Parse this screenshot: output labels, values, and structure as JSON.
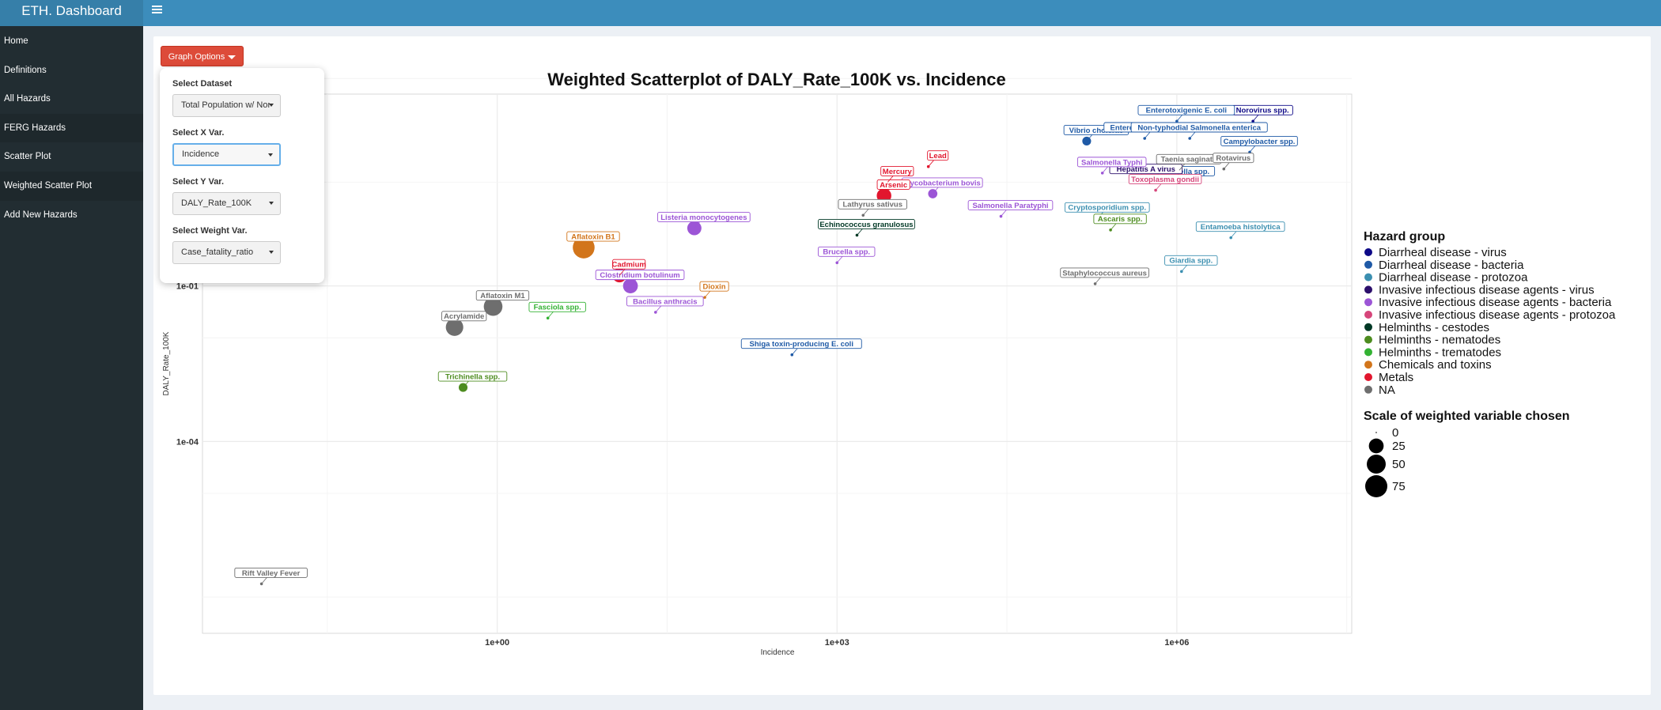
{
  "app": {
    "title": "ETH. Dashboard"
  },
  "header": {
    "toggle_icon": "hamburger-icon"
  },
  "sidebar": {
    "items": [
      {
        "label": "Home",
        "active": false
      },
      {
        "label": "Definitions",
        "active": false
      },
      {
        "label": "All Hazards",
        "active": false
      },
      {
        "label": "FERG Hazards",
        "active": true
      },
      {
        "label": "Scatter Plot",
        "active": false
      },
      {
        "label": "Weighted Scatter Plot",
        "active": true
      },
      {
        "label": "Add New Hazards",
        "active": false
      }
    ]
  },
  "graph_options": {
    "button_label": "Graph Options",
    "dataset": {
      "label": "Select Dataset",
      "value": "Total Population w/ Non-FERG"
    },
    "x_var": {
      "label": "Select X Var.",
      "value": "Incidence"
    },
    "y_var": {
      "label": "Select Y Var.",
      "value": "DALY_Rate_100K"
    },
    "weight_var": {
      "label": "Select Weight Var.",
      "value": "Case_fatality_ratio"
    }
  },
  "chart_data": {
    "type": "scatter",
    "title": "Weighted Scatterplot of  DALY_Rate_100K vs. Incidence",
    "xlabel": "Incidence",
    "ylabel": "DALY_Rate_100K",
    "x_scale": "log10",
    "y_scale": "log10",
    "xlim": [
      0.0025,
      35000000
    ],
    "ylim": [
      2e-08,
      500
    ],
    "x_ticks": [
      {
        "value": 1,
        "label": "1e+00"
      },
      {
        "value": 1000,
        "label": "1e+03"
      },
      {
        "value": 1000000,
        "label": "1e+06"
      }
    ],
    "y_ticks": [
      {
        "value": 0.1,
        "label": "1e-01"
      },
      {
        "value": 0.0001,
        "label": "1e-04"
      }
    ],
    "grid": true,
    "legend_position": "right",
    "groups": [
      {
        "name": "Diarrheal disease - virus",
        "color": "#0d0887"
      },
      {
        "name": "Diarrheal disease - bacteria",
        "color": "#1f5aa6"
      },
      {
        "name": "Diarrheal disease - protozoa",
        "color": "#3b8fb0"
      },
      {
        "name": "Invasive infectious disease agents - virus",
        "color": "#2c0f6b"
      },
      {
        "name": "Invasive infectious disease agents - bacteria",
        "color": "#9c55d6"
      },
      {
        "name": "Invasive infectious disease agents - protozoa",
        "color": "#d6457a"
      },
      {
        "name": "Helminths - cestodes",
        "color": "#003825"
      },
      {
        "name": "Helminths - nematodes",
        "color": "#4d8c1f"
      },
      {
        "name": "Helminths - trematodes",
        "color": "#33b233"
      },
      {
        "name": "Chemicals and toxins",
        "color": "#d2751b"
      },
      {
        "name": "Metals",
        "color": "#e2162e"
      },
      {
        "name": "NA",
        "color": "#6e6e6e"
      }
    ],
    "legend_title": "Hazard group",
    "size_legend_title": "Scale of weighted variable chosen",
    "size_legend": [
      0,
      25,
      50,
      75
    ],
    "points": [
      {
        "label": "Norovirus spp.",
        "x": 4700000,
        "y": 150,
        "weight": 0,
        "group": 0
      },
      {
        "label": "Vibrio cholerae",
        "x": 160000,
        "y": 62,
        "weight": 4,
        "group": 1
      },
      {
        "label": "Enterotoxigenic E. coli",
        "x": 1000000,
        "y": 150,
        "weight": 0,
        "group": 1
      },
      {
        "label": "Enteropathogenic E. coli",
        "x": 520000,
        "y": 70,
        "weight": 0,
        "group": 1
      },
      {
        "label": "Non-typhodial Salmonella enterica",
        "x": 1300000,
        "y": 70,
        "weight": 0,
        "group": 1
      },
      {
        "label": "Campylobacter spp.",
        "x": 4400000,
        "y": 38,
        "weight": 0,
        "group": 1
      },
      {
        "label": "Shigella spp.",
        "x": 1000000,
        "y": 10,
        "weight": 0,
        "group": 1
      },
      {
        "label": "Shiga toxin-producing E. coli",
        "x": 400,
        "y": 0.0047,
        "weight": 0,
        "group": 1
      },
      {
        "label": "Cryptosporidium spp.",
        "x": 200000,
        "y": 2,
        "weight": 0,
        "group": 2
      },
      {
        "label": "Entamoeba histolytica",
        "x": 3000000,
        "y": 0.85,
        "weight": 0,
        "group": 2
      },
      {
        "label": "Giardia spp.",
        "x": 1100000,
        "y": 0.19,
        "weight": 0,
        "group": 2
      },
      {
        "label": "Hepatitis A virus",
        "x": 440000,
        "y": 11,
        "weight": 0,
        "group": 3
      },
      {
        "label": "Salmonella Typhi",
        "x": 220000,
        "y": 15,
        "weight": 0,
        "group": 4
      },
      {
        "label": "Salmonella Paratyphi",
        "x": 28000,
        "y": 2.2,
        "weight": 0,
        "group": 4
      },
      {
        "label": "Mycobacterium bovis",
        "x": 7000,
        "y": 6,
        "weight": 5,
        "group": 4
      },
      {
        "label": "Listeria monocytogenes",
        "x": 55,
        "y": 1.3,
        "weight": 22,
        "group": 4
      },
      {
        "label": "Brucella spp.",
        "x": 1000,
        "y": 0.28,
        "weight": 0,
        "group": 4
      },
      {
        "label": "Clostridium botulinum",
        "x": 15,
        "y": 0.1,
        "weight": 25,
        "group": 4
      },
      {
        "label": "Bacillus anthracis",
        "x": 25,
        "y": 0.031,
        "weight": 0,
        "group": 4
      },
      {
        "label": "Toxoplasma gondii",
        "x": 650000,
        "y": 7,
        "weight": 0,
        "group": 5
      },
      {
        "label": "Echinococcus granulosus",
        "x": 1500,
        "y": 0.95,
        "weight": 0,
        "group": 6
      },
      {
        "label": "Ascaris spp.",
        "x": 260000,
        "y": 1.2,
        "weight": 0,
        "group": 7
      },
      {
        "label": "Trichinella spp.",
        "x": 0.5,
        "y": 0.0011,
        "weight": 4,
        "group": 7
      },
      {
        "label": "Fasciola spp.",
        "x": 2.8,
        "y": 0.024,
        "weight": 0,
        "group": 8
      },
      {
        "label": "Aflatoxin B1",
        "x": 5.8,
        "y": 0.55,
        "weight": 72,
        "group": 9
      },
      {
        "label": "Dioxin",
        "x": 68,
        "y": 0.06,
        "weight": 0,
        "group": 9
      },
      {
        "label": "Arsenic",
        "x": 2600,
        "y": 5.5,
        "weight": 24,
        "group": 10
      },
      {
        "label": "Cadmium",
        "x": 12,
        "y": 0.16,
        "weight": 22,
        "group": 10
      },
      {
        "label": "Mercury",
        "x": 2800,
        "y": 10,
        "weight": 0,
        "group": 10
      },
      {
        "label": "Lead",
        "x": 6400,
        "y": 20,
        "weight": 0,
        "group": 10
      },
      {
        "label": "Lathyrus sativus",
        "x": 1700,
        "y": 2.3,
        "weight": 0,
        "group": 11
      },
      {
        "label": "Taenia saginata",
        "x": 1050000,
        "y": 17,
        "weight": 0,
        "group": 11
      },
      {
        "label": "Rotavirus",
        "x": 2600000,
        "y": 18,
        "weight": 0,
        "group": 11
      },
      {
        "label": "Staphylococcus aureus",
        "x": 190000,
        "y": 0.11,
        "weight": 0,
        "group": 11
      },
      {
        "label": "Aflatoxin M1",
        "x": 0.92,
        "y": 0.04,
        "weight": 48,
        "group": 11
      },
      {
        "label": "Acrylamide",
        "x": 0.42,
        "y": 0.016,
        "weight": 40,
        "group": 11
      },
      {
        "label": "Rift Valley Fever",
        "x": 0.0083,
        "y": 1.8e-07,
        "weight": 0,
        "group": 11
      }
    ]
  }
}
